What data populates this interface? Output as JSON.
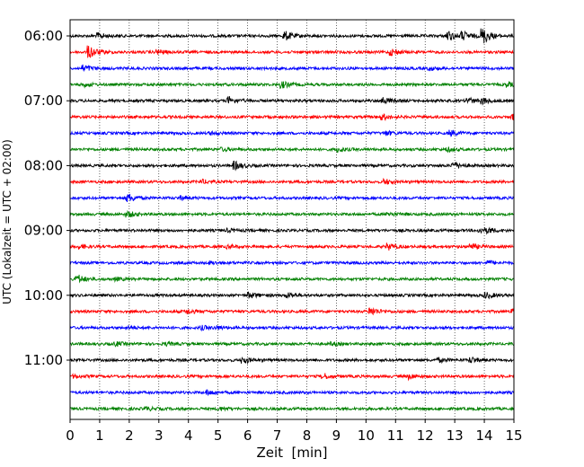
{
  "chart_data": {
    "type": "line",
    "title": "",
    "xlabel": "Zeit  [min]",
    "ylabel": "UTC (Lokalzeit = UTC + 02:00)",
    "xlim": [
      0,
      15
    ],
    "x_ticks": [
      "0",
      "1",
      "2",
      "3",
      "4",
      "5",
      "6",
      "7",
      "8",
      "9",
      "10",
      "11",
      "12",
      "13",
      "14",
      "15"
    ],
    "y_tick_labels": [
      "06:00",
      "07:00",
      "08:00",
      "09:00",
      "10:00",
      "11:00"
    ],
    "grid": "vertical-dotted",
    "trace_interval_minutes": 15,
    "series_colors": [
      "#000000",
      "#ff0000",
      "#0000ff",
      "#008000"
    ],
    "traces": [
      {
        "start": "06:00",
        "color": "#000000",
        "events": [
          [
            1.0,
            0.6
          ],
          [
            7.3,
            1.0
          ],
          [
            12.8,
            1.1
          ],
          [
            13.3,
            0.9
          ],
          [
            14.0,
            1.8
          ]
        ]
      },
      {
        "start": "06:15",
        "color": "#ff0000",
        "events": [
          [
            0.7,
            1.4
          ],
          [
            3.0,
            0.5
          ],
          [
            10.9,
            0.7
          ]
        ]
      },
      {
        "start": "06:30",
        "color": "#0000ff",
        "events": [
          [
            0.5,
            0.7
          ],
          [
            12.2,
            0.4
          ]
        ]
      },
      {
        "start": "06:45",
        "color": "#008000",
        "events": [
          [
            0.5,
            0.4
          ],
          [
            7.2,
            0.7
          ],
          [
            14.8,
            0.5
          ]
        ]
      },
      {
        "start": "07:00",
        "color": "#000000",
        "events": [
          [
            5.4,
            0.8
          ],
          [
            10.6,
            0.7
          ],
          [
            13.5,
            0.6
          ],
          [
            14.0,
            0.6
          ]
        ]
      },
      {
        "start": "07:15",
        "color": "#ff0000",
        "events": [
          [
            10.6,
            0.6
          ],
          [
            15.0,
            0.6
          ]
        ]
      },
      {
        "start": "07:30",
        "color": "#0000ff",
        "events": [
          [
            4.8,
            0.3
          ],
          [
            10.7,
            0.5
          ],
          [
            12.9,
            0.6
          ]
        ]
      },
      {
        "start": "07:45",
        "color": "#008000",
        "events": [
          [
            5.2,
            0.3
          ],
          [
            9.1,
            0.5
          ],
          [
            12.8,
            0.4
          ]
        ]
      },
      {
        "start": "08:00",
        "color": "#000000",
        "events": [
          [
            5.6,
            0.9
          ],
          [
            13.0,
            0.8
          ]
        ]
      },
      {
        "start": "08:15",
        "color": "#ff0000",
        "events": [
          [
            4.5,
            0.4
          ],
          [
            10.7,
            0.5
          ]
        ]
      },
      {
        "start": "08:30",
        "color": "#0000ff",
        "events": [
          [
            2.0,
            0.9
          ],
          [
            3.8,
            0.4
          ]
        ]
      },
      {
        "start": "08:45",
        "color": "#008000",
        "events": [
          [
            2.0,
            0.6
          ],
          [
            10.8,
            0.4
          ]
        ]
      },
      {
        "start": "09:00",
        "color": "#000000",
        "events": [
          [
            5.4,
            0.3
          ],
          [
            13.9,
            0.5
          ],
          [
            14.2,
            0.4
          ]
        ]
      },
      {
        "start": "09:15",
        "color": "#ff0000",
        "events": [
          [
            0.4,
            0.4
          ],
          [
            5.4,
            0.3
          ],
          [
            10.8,
            0.7
          ],
          [
            13.6,
            0.6
          ]
        ]
      },
      {
        "start": "09:30",
        "color": "#0000ff",
        "events": [
          [
            4.8,
            0.3
          ],
          [
            14.2,
            0.4
          ]
        ]
      },
      {
        "start": "09:45",
        "color": "#008000",
        "events": [
          [
            0.3,
            0.9
          ],
          [
            1.6,
            0.3
          ]
        ]
      },
      {
        "start": "10:00",
        "color": "#000000",
        "events": [
          [
            6.1,
            0.6
          ],
          [
            7.4,
            0.5
          ],
          [
            14.1,
            0.6
          ]
        ]
      },
      {
        "start": "10:15",
        "color": "#ff0000",
        "events": [
          [
            4.0,
            0.5
          ],
          [
            10.2,
            0.9
          ],
          [
            15.0,
            0.6
          ]
        ]
      },
      {
        "start": "10:30",
        "color": "#0000ff",
        "events": [
          [
            2.0,
            0.3
          ],
          [
            4.5,
            0.4
          ],
          [
            5.0,
            0.3
          ]
        ]
      },
      {
        "start": "10:45",
        "color": "#008000",
        "events": [
          [
            1.6,
            0.4
          ],
          [
            3.3,
            0.3
          ],
          [
            8.9,
            0.3
          ]
        ]
      },
      {
        "start": "11:00",
        "color": "#000000",
        "events": [
          [
            5.9,
            0.7
          ],
          [
            12.5,
            0.4
          ],
          [
            13.6,
            0.6
          ]
        ]
      },
      {
        "start": "11:15",
        "color": "#ff0000",
        "events": [
          [
            0.2,
            0.3
          ],
          [
            8.6,
            0.6
          ],
          [
            11.5,
            0.6
          ]
        ]
      },
      {
        "start": "11:30",
        "color": "#0000ff",
        "events": [
          [
            4.7,
            0.5
          ]
        ]
      },
      {
        "start": "11:45",
        "color": "#008000",
        "events": [
          [
            2.6,
            0.4
          ],
          [
            5.1,
            0.3
          ]
        ]
      }
    ]
  }
}
